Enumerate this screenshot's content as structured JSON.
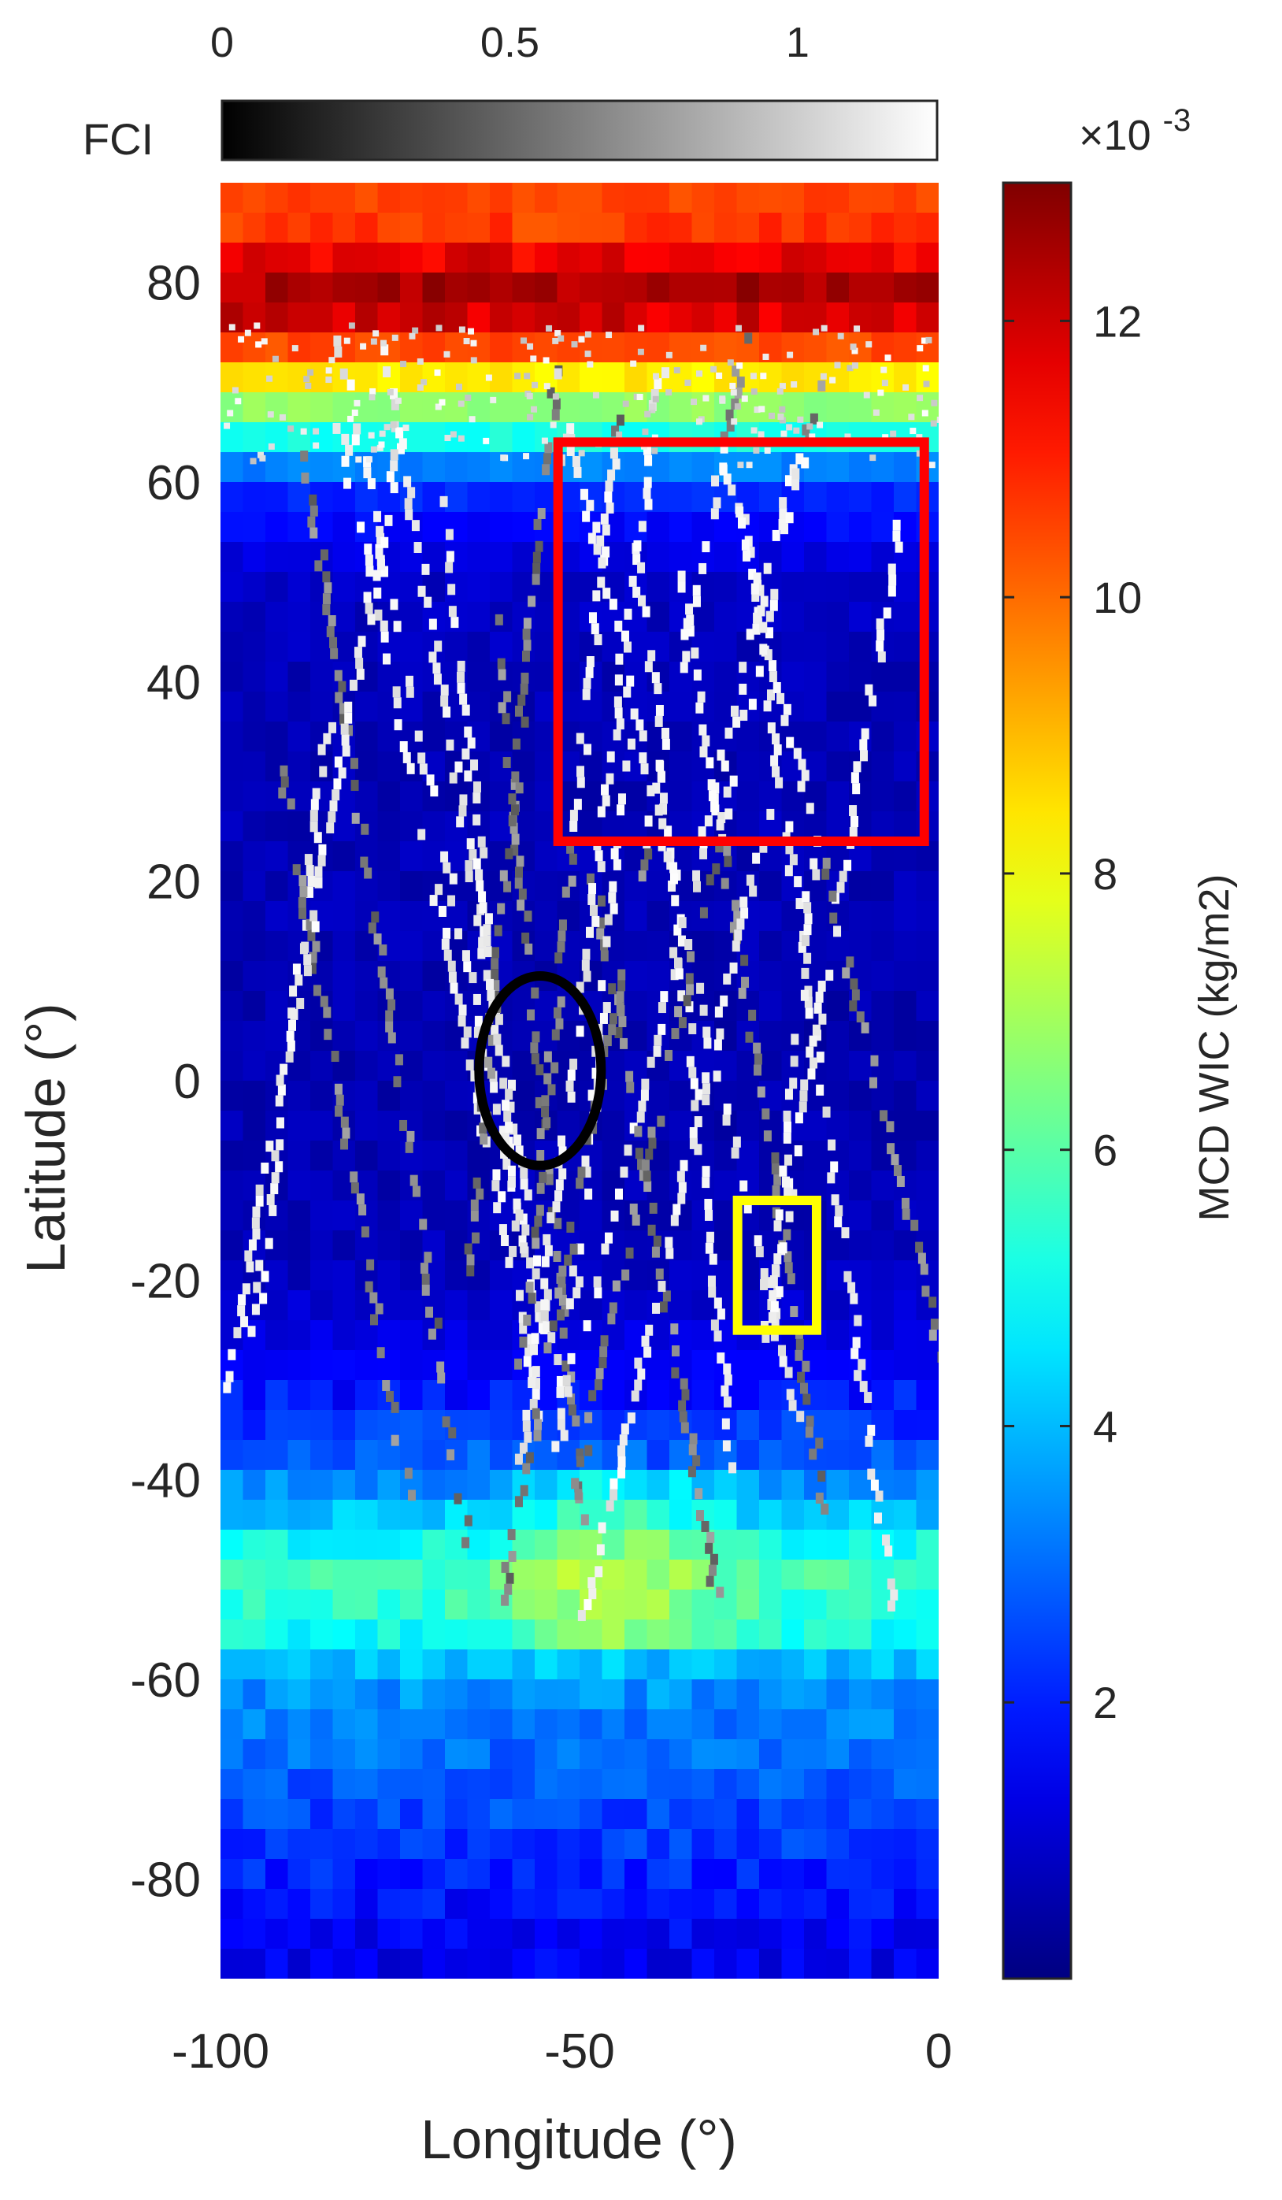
{
  "chart_data": {
    "type": "heatmap",
    "title": "",
    "xlabel": "Longitude (°)",
    "ylabel": "Latitude (°)",
    "xlim": [
      -100,
      0
    ],
    "ylim": [
      -90,
      90
    ],
    "x_ticks": [
      -100,
      -50,
      0
    ],
    "y_ticks": [
      -80,
      -60,
      -40,
      -20,
      0,
      20,
      40,
      60,
      80
    ],
    "grid": false,
    "colorbar": {
      "label": "MCD WIC (kg/m2)",
      "range": [
        0,
        0.013
      ],
      "ticks": [
        2,
        4,
        6,
        8,
        10,
        12
      ],
      "multiplier": "×10",
      "multiplier_exp": "-3",
      "colormap": "jet",
      "colors": [
        "#00008f",
        "#0000ff",
        "#00ffff",
        "#ffff00",
        "#ff0000",
        "#800000"
      ]
    },
    "fci_colorbar": {
      "label": "FCI",
      "range": [
        0,
        1
      ],
      "ticks": [
        "0",
        "0.5",
        "1"
      ],
      "colormap": "gray"
    },
    "wic_profile": {
      "latitude": [
        85,
        80,
        75,
        70,
        65,
        60,
        50,
        40,
        20,
        0,
        -20,
        -30,
        -35,
        -40,
        -45,
        -50,
        -55,
        -60,
        -70,
        -80,
        -88
      ],
      "wic_x1e-3": [
        10.5,
        12.4,
        11.5,
        8.0,
        5.5,
        2.3,
        0.9,
        0.7,
        0.7,
        0.6,
        0.8,
        1.6,
        2.4,
        3.2,
        4.6,
        5.8,
        5.2,
        3.6,
        2.8,
        2.0,
        1.4
      ]
    },
    "fci_tracks": {
      "description_in_data_units": "streaks of FCI values (0-1) along orbit tracks",
      "value_range": [
        0,
        1
      ]
    },
    "annotations": [
      {
        "shape": "rectangle",
        "color": "#ff0000",
        "lon": [
          -53,
          -2
        ],
        "lat": [
          24,
          64
        ]
      },
      {
        "shape": "ellipse",
        "color": "#000000",
        "lon_center": -55.5,
        "lat_center": 1,
        "lon_radius": 8.5,
        "lat_radius": 9.5
      },
      {
        "shape": "rectangle",
        "color": "#ffff00",
        "lon": [
          -28,
          -17
        ],
        "lat": [
          -25,
          -12
        ]
      }
    ]
  }
}
